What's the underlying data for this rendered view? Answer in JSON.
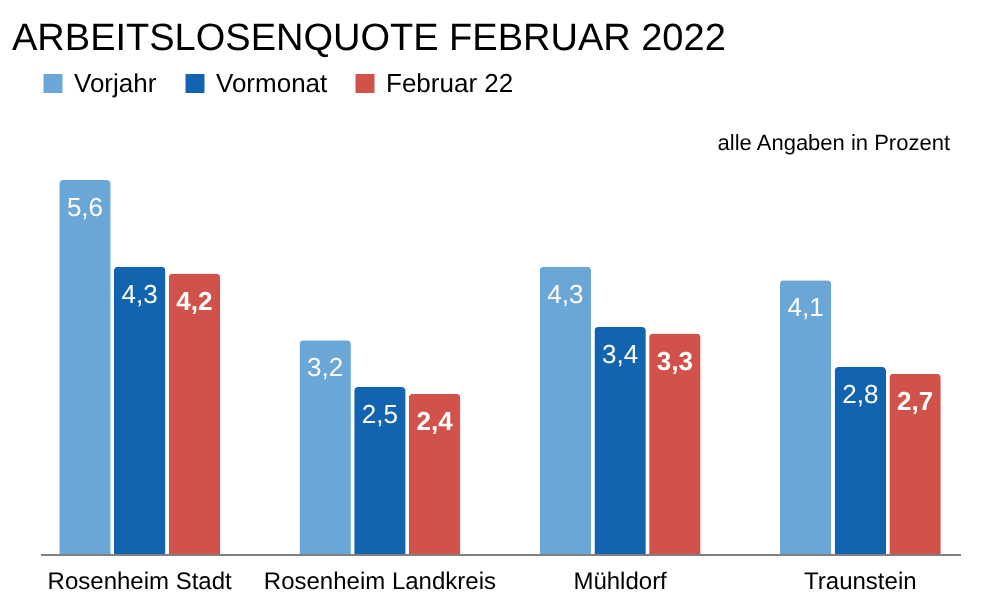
{
  "chart_data": {
    "type": "bar",
    "title": "ARBEITSLOSENQUOTE FEBRUAR 2022",
    "categories": [
      "Rosenheim Stadt",
      "Rosenheim Landkreis",
      "Mühldorf",
      "Traunstein"
    ],
    "series": [
      {
        "name": "Vorjahr",
        "color": "#6aa6d6",
        "values": [
          5.6,
          3.2,
          4.3,
          4.1
        ],
        "value_labels": [
          "5,6",
          "3,2",
          "4,3",
          "4,1"
        ]
      },
      {
        "name": "Vormonat",
        "color": "#1264b0",
        "values": [
          4.3,
          2.5,
          3.4,
          2.8
        ],
        "value_labels": [
          "4,3",
          "2,5",
          "3,4",
          "2,8"
        ]
      },
      {
        "name": "Februar 22",
        "color": "#d0524a",
        "values": [
          4.2,
          2.4,
          3.3,
          2.7
        ],
        "value_labels": [
          "4,2",
          "2,4",
          "3,3",
          "2,7"
        ]
      }
    ],
    "annotations": [
      "alle Angaben in Prozent"
    ],
    "legend": "top left",
    "grid": false
  }
}
